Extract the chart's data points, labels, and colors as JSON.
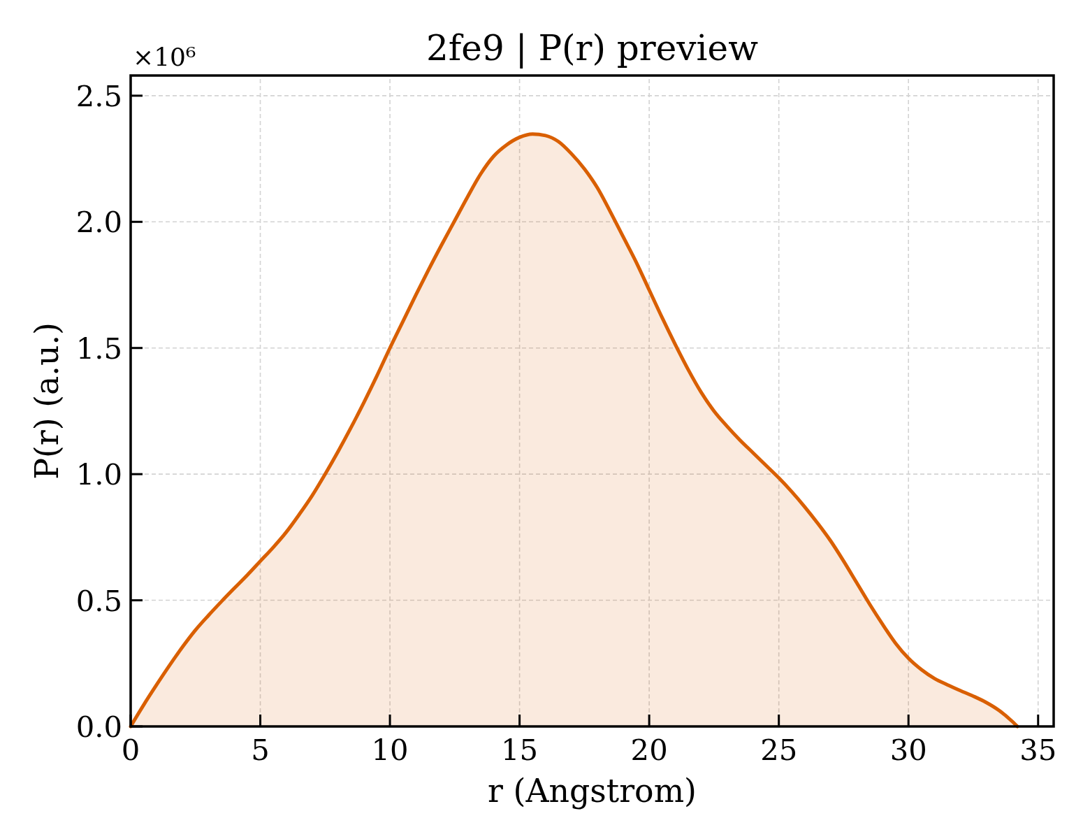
{
  "chart_data": {
    "type": "area",
    "title": "2fe9 | P(r) preview",
    "xlabel": "r (Angstrom)",
    "ylabel": "P(r) (a.u.)",
    "annotations": [
      "×10⁶"
    ],
    "x": [
      0,
      0.5,
      1,
      1.5,
      2,
      2.5,
      3,
      3.5,
      4,
      4.5,
      5,
      5.5,
      6,
      6.5,
      7,
      7.5,
      8,
      8.5,
      9,
      9.5,
      10,
      10.5,
      11,
      11.5,
      12,
      12.5,
      13,
      13.5,
      14,
      14.5,
      15,
      15.5,
      16,
      16.5,
      17,
      17.5,
      18,
      18.5,
      19,
      19.5,
      20,
      20.5,
      21,
      21.5,
      22,
      22.5,
      23,
      23.5,
      24,
      24.5,
      25,
      25.5,
      26,
      26.5,
      27,
      27.5,
      28,
      28.5,
      29,
      29.5,
      30,
      30.5,
      31,
      31.5,
      32,
      32.5,
      33,
      33.5,
      34,
      34.2
    ],
    "series": [
      {
        "color": "#d95f02",
        "values": [
          0,
          0.085,
          0.165,
          0.242,
          0.315,
          0.382,
          0.44,
          0.495,
          0.548,
          0.6,
          0.655,
          0.71,
          0.77,
          0.84,
          0.915,
          1.0,
          1.09,
          1.185,
          1.285,
          1.39,
          1.5,
          1.605,
          1.71,
          1.812,
          1.91,
          2.005,
          2.1,
          2.19,
          2.26,
          2.305,
          2.335,
          2.348,
          2.342,
          2.318,
          2.27,
          2.21,
          2.135,
          2.04,
          1.94,
          1.84,
          1.73,
          1.62,
          1.515,
          1.415,
          1.325,
          1.25,
          1.19,
          1.135,
          1.085,
          1.035,
          0.985,
          0.93,
          0.87,
          0.805,
          0.735,
          0.655,
          0.57,
          0.485,
          0.405,
          0.33,
          0.27,
          0.225,
          0.19,
          0.165,
          0.142,
          0.12,
          0.095,
          0.063,
          0.02,
          0
        ]
      }
    ],
    "xlim": [
      0,
      35.6
    ],
    "xticks": [
      0,
      5,
      10,
      15,
      20,
      25,
      30,
      35
    ],
    "ylim": [
      0,
      2.58
    ],
    "yticks": [
      {
        "value": 0,
        "label": "0.0"
      },
      {
        "value": 0.5,
        "label": "0.5"
      },
      {
        "value": 1,
        "label": "1.0"
      },
      {
        "value": 1.5,
        "label": "1.5"
      },
      {
        "value": 2,
        "label": "2.0"
      },
      {
        "value": 2.5,
        "label": "2.5"
      }
    ],
    "grid": true
  }
}
